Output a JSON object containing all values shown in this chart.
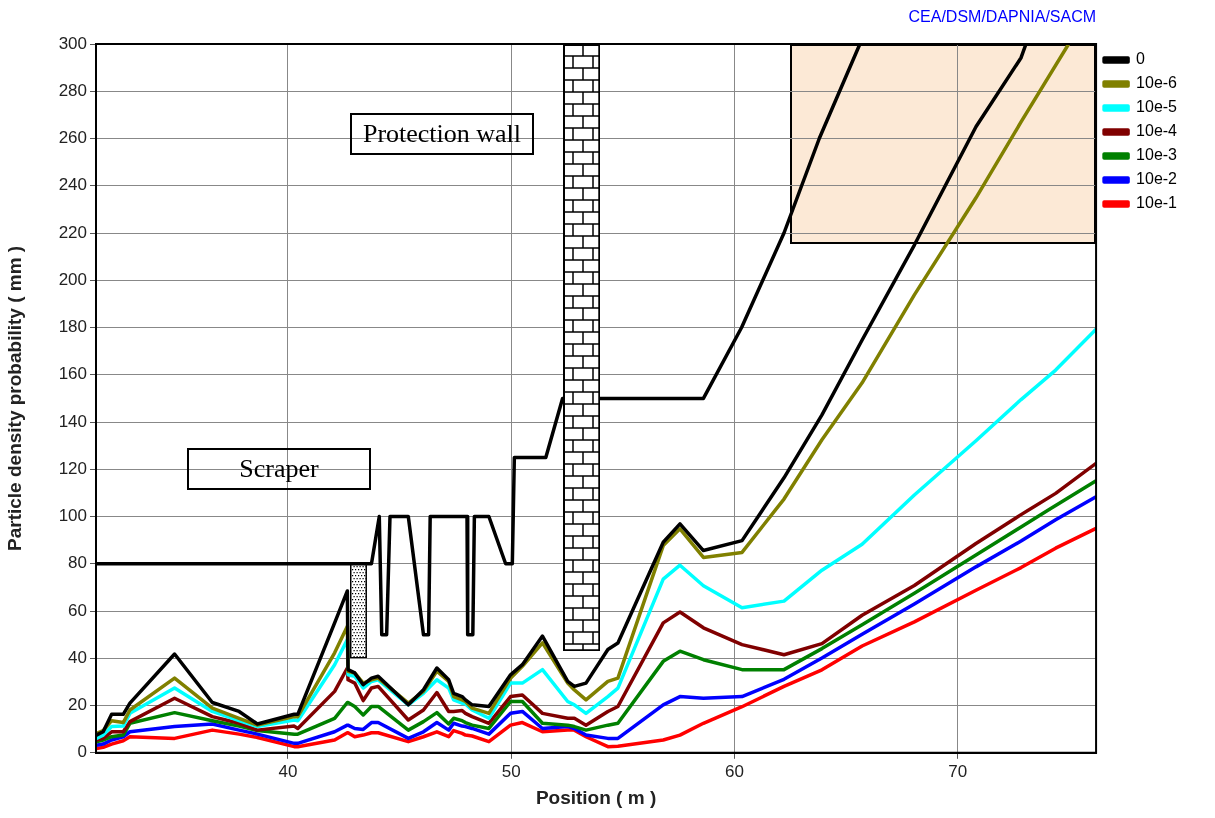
{
  "chart_data": {
    "type": "line",
    "xlabel": "Position ( m )",
    "ylabel": "Particle density probability ( mm )",
    "annotations": [
      "CEA/DSM/DAPNIA/SACM",
      "Protection wall",
      "Scraper"
    ],
    "xlim": [
      31.4,
      76.2
    ],
    "xticks": [
      40,
      50,
      60,
      70
    ],
    "ylim": [
      0,
      300
    ],
    "yticks": [
      0,
      20,
      40,
      60,
      80,
      100,
      120,
      140,
      160,
      180,
      200,
      220,
      240,
      260,
      280,
      300
    ],
    "grid": true,
    "legend": "right",
    "x": [
      31.42,
      31.72,
      32.1,
      32.62,
      32.92,
      34.92,
      36.61,
      37.81,
      38.63,
      40.28,
      40.44,
      42.09,
      42.66,
      42.69,
      42.99,
      43.37,
      43.74,
      44.04,
      45.39,
      46.07,
      46.67,
      47.2,
      47.42,
      47.8,
      47.95,
      48.25,
      49.0,
      49.97,
      50.5,
      51.4,
      52.53,
      52.83,
      53.35,
      54.33,
      54.78,
      56.81,
      57.56,
      58.61,
      60.34,
      62.22,
      63.92,
      65.72,
      68.06,
      70.82,
      72.84,
      74.39,
      76.2
    ],
    "series": [
      {
        "color": "#000000",
        "x": [
          31.42,
          43.74,
          44.09,
          44.2,
          44.42,
          44.57,
          45.39,
          46.07,
          46.3,
          46.37,
          48.02,
          48.05,
          48.28,
          48.35,
          49.0,
          49.75,
          50.05,
          50.14,
          51.55,
          52.3,
          53.97,
          58.61,
          60.32,
          62.22,
          63.8,
          65.62
        ],
        "values": [
          80,
          80,
          100,
          50,
          50,
          100,
          100,
          50,
          50,
          100,
          100,
          50,
          50,
          100,
          100,
          80,
          80,
          125,
          125,
          150,
          150,
          150,
          180,
          220,
          260,
          300
        ]
      },
      {
        "name": "0",
        "color": "#000000",
        "x": [
          31.42,
          31.72,
          32.1,
          32.62,
          32.92,
          34.92,
          36.61,
          37.81,
          38.63,
          40.28,
          40.44,
          42.09,
          42.66,
          42.69,
          42.99,
          43.37,
          43.74,
          44.04,
          45.39,
          46.07,
          46.67,
          47.2,
          47.42,
          47.8,
          47.95,
          48.25,
          49.0,
          49.97,
          50.5,
          51.4,
          52.53,
          52.83,
          53.35,
          54.33,
          54.78,
          56.81,
          57.56,
          58.61,
          60.34,
          62.22,
          63.92,
          65.72,
          68.06,
          70.82,
          72.84,
          73.06
        ],
        "values": [
          7.5,
          8.9,
          16.3,
          16.3,
          21,
          41.8,
          21.3,
          17.5,
          12.2,
          16.3,
          16.3,
          55,
          68.5,
          35.2,
          33.8,
          28.8,
          31.6,
          32.4,
          20.3,
          26.7,
          35.9,
          30.9,
          25.2,
          23.8,
          22.4,
          20.3,
          19.6,
          33,
          37.3,
          49.4,
          30.2,
          28.1,
          29.5,
          43.7,
          46.5,
          89.1,
          96.9,
          85.6,
          89.8,
          116.4,
          143,
          174.7,
          214.9,
          265,
          294.2,
          300
        ]
      },
      {
        "name": "10e-6",
        "color": "#808000",
        "x": [
          31.42,
          31.72,
          32.1,
          32.62,
          32.92,
          34.92,
          36.61,
          37.81,
          38.63,
          40.28,
          40.44,
          42.09,
          42.66,
          42.69,
          42.99,
          43.37,
          43.74,
          44.04,
          45.39,
          46.07,
          46.67,
          47.2,
          47.42,
          47.8,
          47.95,
          48.25,
          49.0,
          49.97,
          50.5,
          51.4,
          52.53,
          52.83,
          53.35,
          54.33,
          54.78,
          56.81,
          57.56,
          58.61,
          60.34,
          62.22,
          63.92,
          65.72,
          68.06,
          70.82,
          72.84,
          74.97
        ],
        "values": [
          8.2,
          9.4,
          13.6,
          12.8,
          18.1,
          31.6,
          18.9,
          14.6,
          11.7,
          15.3,
          15.3,
          42.3,
          53.6,
          34.5,
          33.8,
          29.5,
          30.9,
          31.6,
          21,
          26,
          34.5,
          30.2,
          23.8,
          22.4,
          21.7,
          18.9,
          16.7,
          31.6,
          36.6,
          46.5,
          29.5,
          26.6,
          22.4,
          30.2,
          31.6,
          87.7,
          94.8,
          82.7,
          84.8,
          107.4,
          132.5,
          156.6,
          193.8,
          234.9,
          267,
          300
        ]
      },
      {
        "name": "10e-5",
        "color": "#00ffff",
        "values": [
          6.1,
          7.5,
          11.1,
          11.3,
          16.7,
          27.4,
          17.5,
          13.6,
          11.1,
          13.9,
          13.6,
          37.3,
          47.9,
          33,
          32.4,
          27.4,
          30.2,
          30.9,
          20.3,
          25.2,
          30.9,
          27.4,
          22.4,
          21,
          20.7,
          18.1,
          14.6,
          29.5,
          29.5,
          35.2,
          21.7,
          20.3,
          16.7,
          23.8,
          27.4,
          73.5,
          79.4,
          70.7,
          61.4,
          64.2,
          77.3,
          88.3,
          109.1,
          132.1,
          149.5,
          162,
          179.3
        ]
      },
      {
        "name": "10e-4",
        "color": "#800000",
        "values": [
          5.4,
          6.1,
          8.9,
          8.9,
          13.2,
          23.1,
          15.3,
          12.5,
          9.6,
          11.3,
          10.3,
          26,
          35.9,
          30.9,
          29.5,
          22.1,
          27.4,
          28.1,
          13.9,
          18.1,
          25.5,
          17.5,
          17.5,
          17.9,
          16.7,
          15.3,
          12.5,
          23.8,
          24.5,
          16.7,
          14.6,
          14.6,
          11.7,
          17.5,
          19.6,
          55,
          59.6,
          52.9,
          45.8,
          41.5,
          46.2,
          58.2,
          70.8,
          88.6,
          100.8,
          109.8,
          122.5
        ]
      },
      {
        "name": "10e-3",
        "color": "#008000",
        "values": [
          4.7,
          5.4,
          6.8,
          7.5,
          12.5,
          17,
          13.6,
          11.3,
          9.4,
          7.9,
          7.9,
          14.6,
          21.3,
          21.3,
          19.6,
          16,
          19.6,
          19.6,
          9.6,
          13.2,
          17,
          12.2,
          14.6,
          13.6,
          12.8,
          11.7,
          10.3,
          21.7,
          21.7,
          12.5,
          11.7,
          11.1,
          9.6,
          11.7,
          12.5,
          38.7,
          43,
          39.4,
          35.2,
          35.2,
          44.1,
          54.2,
          67.5,
          83.7,
          95.6,
          104.7,
          115.1
        ]
      },
      {
        "name": "10e-2",
        "color": "#0000ff",
        "values": [
          3.2,
          3.7,
          5.4,
          6.8,
          8.9,
          11.1,
          12.2,
          9.6,
          7.9,
          4,
          4,
          8.9,
          11.7,
          11.7,
          10.3,
          9.9,
          12.8,
          12.8,
          6.1,
          8.9,
          12.8,
          9.6,
          12.5,
          11.3,
          11.1,
          10.3,
          7.9,
          16.7,
          17.5,
          10.3,
          11.1,
          10.3,
          7.5,
          6.1,
          6.1,
          20.3,
          23.8,
          23.1,
          23.8,
          31.1,
          40.1,
          50.2,
          63,
          78.7,
          89.6,
          98.6,
          108.4
        ]
      },
      {
        "name": "10e-1",
        "color": "#ff0000",
        "values": [
          1.8,
          2.3,
          3.7,
          5.1,
          6.8,
          6.1,
          9.6,
          7.9,
          6.5,
          2.6,
          2.6,
          5.4,
          8.5,
          8.5,
          6.8,
          7.5,
          8.5,
          8.5,
          4.7,
          6.8,
          8.9,
          6.8,
          9.4,
          8.2,
          7.5,
          7.1,
          4.7,
          11.7,
          12.8,
          8.9,
          9.6,
          9.6,
          6.8,
          2.6,
          2.8,
          5.4,
          7.5,
          12.5,
          19.5,
          28.1,
          35.1,
          45.2,
          55.4,
          68.8,
          78.4,
          86.6,
          95
        ]
      }
    ]
  }
}
